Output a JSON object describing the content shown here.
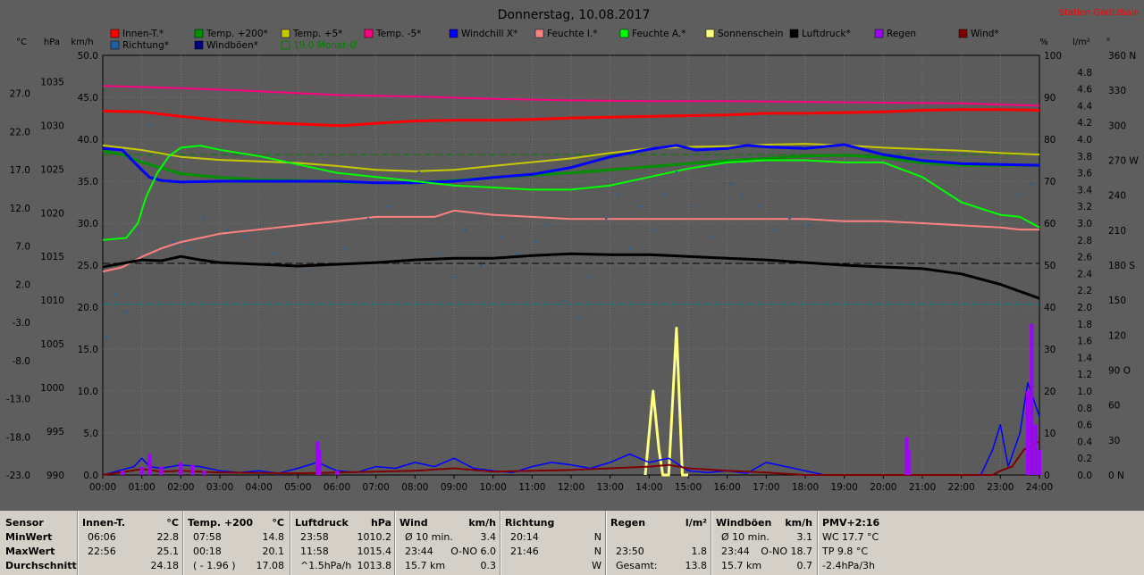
{
  "header": {
    "title": "Donnerstag, 10.08.2017",
    "station": "Station Göritzhain",
    "unit_labels": [
      "°C",
      "hPa",
      "km/h",
      "%",
      "l/m²",
      "°"
    ]
  },
  "legend": [
    {
      "label": "Innen-T.*",
      "color": "#ff0000"
    },
    {
      "label": "Temp. +200*",
      "color": "#009000"
    },
    {
      "label": "Temp. +5*",
      "color": "#c8c800"
    },
    {
      "label": "Temp. -5*",
      "color": "#ff0080"
    },
    {
      "label": "Windchill X*",
      "color": "#0000ff"
    },
    {
      "label": "Feuchte I.*",
      "color": "#ff8080"
    },
    {
      "label": "Feuchte A.*",
      "color": "#00ff00"
    },
    {
      "label": "Sonnenschein",
      "color": "#ffff80"
    },
    {
      "label": "Luftdruck*",
      "color": "#000000"
    },
    {
      "label": "Regen",
      "color": "#a000ff"
    },
    {
      "label": "Wind*",
      "color": "#800000"
    },
    {
      "label": "Richtung*",
      "color": "#2060a0"
    },
    {
      "label": "Windböen*",
      "color": "#000080"
    },
    {
      "label": "19.0 Monat-Ø",
      "color": "#008000",
      "outline": true
    }
  ],
  "chart_data": {
    "type": "line",
    "x": [
      "00:00",
      "01:00",
      "02:00",
      "03:00",
      "04:00",
      "05:00",
      "06:00",
      "07:00",
      "08:00",
      "09:00",
      "10:00",
      "11:00",
      "12:00",
      "13:00",
      "14:00",
      "15:00",
      "16:00",
      "17:00",
      "18:00",
      "19:00",
      "20:00",
      "21:00",
      "22:00",
      "23:00",
      "24:00"
    ],
    "xlim": [
      0,
      24
    ],
    "axes": {
      "celsius": {
        "ticks": [
          "27.0",
          "22.0",
          "17.0",
          "12.0",
          "7.0",
          "2.0",
          "-3.0",
          "-8.0",
          "-13.0",
          "-18.0",
          "-23.0"
        ],
        "ylim": [
          -23,
          32
        ]
      },
      "hpa": {
        "ticks": [
          "1035",
          "1030",
          "1025",
          "1020",
          "1015",
          "1010",
          "1005",
          "1000",
          "995",
          "990"
        ],
        "ylim": [
          990,
          1038
        ]
      },
      "kmh": {
        "ticks": [
          "50.0",
          "45.0",
          "40.0",
          "35.0",
          "30.0",
          "25.0",
          "20.0",
          "15.0",
          "10.0",
          "5.0",
          "0.0"
        ],
        "ylim": [
          0,
          50
        ]
      },
      "percent": {
        "ticks": [
          "100",
          "90",
          "80",
          "70",
          "60",
          "50",
          "40",
          "30",
          "20",
          "10",
          "0"
        ],
        "ylim": [
          0,
          100
        ]
      },
      "rain": {
        "ticks": [
          "4.8",
          "4.6",
          "4.4",
          "4.2",
          "4.0",
          "3.8",
          "3.6",
          "3.4",
          "3.2",
          "3.0",
          "2.8",
          "2.6",
          "2.4",
          "2.2",
          "2.0",
          "1.8",
          "1.6",
          "1.4",
          "1.2",
          "1.0",
          "0.8",
          "0.6",
          "0.4",
          "0.2",
          "0.0"
        ],
        "ylim": [
          0,
          5
        ]
      },
      "direction": {
        "ticks": [
          "360 N",
          "330",
          "300",
          "270 W",
          "240",
          "210",
          "180 S",
          "150",
          "120",
          "90 O",
          "60",
          "30",
          "0 N"
        ],
        "ylim": [
          0,
          360
        ]
      }
    },
    "reference_lines": [
      {
        "name": "19.0 Monat-Ø",
        "axis": "celsius",
        "value": 19.0,
        "color": "#008000"
      },
      {
        "axis": "hpa",
        "value": 1014.2,
        "color": "#000000"
      },
      {
        "axis": "celsius",
        "value": -0.6,
        "color": "#008080"
      }
    ],
    "series": [
      {
        "name": "Temp. -5*",
        "axis": "celsius",
        "color": "#ff0080",
        "width": 2,
        "x": [
          0,
          2,
          4,
          6,
          8,
          10,
          12,
          14,
          16,
          18,
          20,
          22,
          24
        ],
        "y": [
          28.0,
          27.7,
          27.3,
          26.8,
          26.6,
          26.3,
          26.1,
          26.0,
          26.0,
          25.9,
          25.8,
          25.7,
          25.4
        ]
      },
      {
        "name": "Innen-T.*",
        "axis": "celsius",
        "color": "#ff0000",
        "width": 3,
        "x": [
          0,
          1,
          2,
          3,
          4,
          5,
          6,
          6.2,
          7,
          8,
          9,
          10,
          11,
          12,
          13,
          14,
          15,
          16,
          17,
          18,
          19,
          20,
          21,
          22,
          23,
          24
        ],
        "y": [
          24.7,
          24.6,
          24.0,
          23.5,
          23.2,
          23.0,
          22.8,
          22.8,
          23.1,
          23.4,
          23.5,
          23.5,
          23.6,
          23.8,
          23.9,
          24.0,
          24.1,
          24.2,
          24.4,
          24.4,
          24.5,
          24.6,
          24.8,
          24.9,
          24.9,
          24.8
        ]
      },
      {
        "name": "Temp. +5*",
        "axis": "celsius",
        "color": "#c8c800",
        "width": 2,
        "x": [
          0,
          1,
          2,
          3,
          4,
          5,
          6,
          7,
          8,
          9,
          10,
          11,
          12,
          13,
          14,
          15,
          16,
          17,
          18,
          19,
          20,
          21,
          22,
          23,
          24
        ],
        "y": [
          20.2,
          19.6,
          18.7,
          18.3,
          18.1,
          17.9,
          17.5,
          17.0,
          16.8,
          17.0,
          17.5,
          18.0,
          18.5,
          19.2,
          19.8,
          20.0,
          20.1,
          20.3,
          20.4,
          20.2,
          19.9,
          19.7,
          19.5,
          19.2,
          19.0
        ]
      },
      {
        "name": "Temp. +200*",
        "axis": "celsius",
        "color": "#009000",
        "width": 3,
        "x": [
          0,
          0.5,
          1,
          2,
          3,
          4,
          5,
          6,
          7,
          8,
          9,
          10,
          11,
          12,
          13,
          14,
          15,
          16,
          17,
          18,
          19,
          20,
          21,
          22,
          23,
          24
        ],
        "y": [
          19.5,
          19.0,
          18.0,
          16.5,
          16.0,
          15.7,
          15.6,
          15.4,
          15.3,
          15.3,
          15.6,
          16.0,
          16.3,
          16.6,
          17.0,
          17.4,
          17.8,
          18.2,
          18.5,
          18.8,
          18.9,
          18.6,
          17.9,
          17.6,
          17.6,
          17.6
        ]
      },
      {
        "name": "Windchill X*",
        "axis": "celsius",
        "color": "#0000ff",
        "width": 3,
        "x": [
          0,
          0.5,
          0.9,
          1.2,
          1.5,
          2,
          3,
          4,
          5,
          6,
          7,
          8,
          9,
          10,
          11,
          12,
          13,
          14,
          14.7,
          15.2,
          16,
          16.5,
          17,
          18,
          19,
          20,
          21,
          22,
          23,
          24
        ],
        "y": [
          19.8,
          19.6,
          17.5,
          16.0,
          15.6,
          15.4,
          15.5,
          15.5,
          15.5,
          15.5,
          15.3,
          15.3,
          15.5,
          16.0,
          16.4,
          17.3,
          18.7,
          19.7,
          20.2,
          19.6,
          19.8,
          20.2,
          20.0,
          19.8,
          20.3,
          19.0,
          18.2,
          17.8,
          17.7,
          17.6
        ]
      },
      {
        "name": "Feuchte A.*",
        "axis": "percent",
        "color": "#00ff00",
        "width": 2,
        "x": [
          0,
          0.6,
          0.9,
          1.1,
          1.4,
          1.7,
          2,
          2.5,
          3,
          4,
          5,
          6,
          7,
          8,
          9,
          10,
          11,
          12,
          13,
          14,
          15,
          16,
          17,
          18,
          19,
          20,
          21,
          22,
          23,
          23.5,
          24
        ],
        "y": [
          56,
          56.5,
          60,
          66,
          72,
          76,
          78,
          78.5,
          77.5,
          76,
          74,
          72,
          71,
          70,
          69,
          68.5,
          68,
          68,
          69,
          71,
          73,
          74.5,
          75,
          75,
          74.5,
          74.5,
          71,
          65,
          62,
          61.5,
          59
        ]
      },
      {
        "name": "Feuchte I.*",
        "axis": "percent",
        "color": "#ff8080",
        "width": 2,
        "x": [
          0,
          0.5,
          1,
          1.5,
          2,
          2.5,
          3,
          3.5,
          4,
          5,
          5.5,
          6,
          6.5,
          7,
          7.5,
          8,
          8.5,
          9,
          9.5,
          10,
          11,
          12,
          13,
          14,
          15,
          16,
          17,
          18,
          19,
          20,
          21,
          22,
          23,
          23.5,
          24
        ],
        "y": [
          48.5,
          49.5,
          52,
          54,
          55.5,
          56.5,
          57.5,
          58,
          58.5,
          59.5,
          60,
          60.5,
          61,
          61.5,
          61.5,
          61.5,
          61.5,
          63,
          62.5,
          62,
          61.5,
          61,
          61,
          61,
          61,
          61,
          61,
          61,
          60.5,
          60.5,
          60,
          59.5,
          59,
          58.5,
          58.5
        ]
      },
      {
        "name": "Luftdruck*",
        "axis": "hpa",
        "color": "#000000",
        "width": 3,
        "x": [
          0,
          0.5,
          1,
          1.5,
          2,
          2.5,
          3,
          4,
          5,
          6,
          7,
          8,
          9,
          10,
          11,
          12,
          13,
          14,
          15,
          16,
          17,
          18,
          19,
          20,
          21,
          22,
          23,
          24
        ],
        "y": [
          1013.8,
          1014.2,
          1014.6,
          1014.5,
          1015.0,
          1014.6,
          1014.3,
          1014.1,
          1013.9,
          1014.1,
          1014.3,
          1014.6,
          1014.8,
          1014.8,
          1015.1,
          1015.3,
          1015.2,
          1015.2,
          1015.0,
          1014.8,
          1014.6,
          1014.3,
          1014.0,
          1013.8,
          1013.6,
          1013.0,
          1011.8,
          1010.2
        ]
      },
      {
        "name": "Sonnenschein",
        "axis": "percent",
        "color": "#ffff80",
        "width": 3,
        "x": [
          13.9,
          14.1,
          14.25,
          14.35,
          14.5,
          14.7,
          14.85,
          15.0
        ],
        "y": [
          0,
          20,
          6,
          0,
          0,
          35,
          0,
          0
        ]
      },
      {
        "name": "Windböen*",
        "axis": "kmh",
        "color": "#0000ff",
        "width": 1.5,
        "x": [
          0,
          0.8,
          1,
          1.2,
          1.5,
          2,
          2.5,
          3,
          3.5,
          4,
          4.5,
          5,
          5.5,
          6,
          6.5,
          7,
          7.5,
          8,
          8.5,
          9,
          9.5,
          10,
          10.5,
          11,
          11.5,
          12,
          12.5,
          13,
          13.5,
          14,
          14.5,
          15,
          15.5,
          16,
          16.5,
          17,
          17.5,
          18,
          18.5,
          22.5,
          22.8,
          23,
          23.2,
          23.5,
          23.7,
          24
        ],
        "y": [
          0,
          1,
          2,
          1,
          0.8,
          1.2,
          1,
          0.5,
          0.3,
          0.5,
          0.2,
          0.8,
          1.5,
          0.5,
          0.3,
          1,
          0.8,
          1.5,
          1,
          2,
          0.8,
          0.5,
          0.3,
          1,
          1.5,
          1.2,
          0.8,
          1.5,
          2.5,
          1.5,
          2,
          0.5,
          0.3,
          0.5,
          0.2,
          1.5,
          1,
          0.5,
          0,
          0,
          3,
          6,
          1,
          5,
          11,
          7
        ]
      },
      {
        "name": "Wind*",
        "axis": "kmh",
        "color": "#800000",
        "width": 2,
        "x": [
          0,
          1,
          1.5,
          2,
          3,
          5,
          6,
          8,
          9,
          10,
          11,
          12,
          13,
          14,
          14.5,
          15,
          16,
          17,
          18,
          22.8,
          23,
          23.3,
          23.6,
          24
        ],
        "y": [
          0,
          0.7,
          0.4,
          0.5,
          0.3,
          0.2,
          0.3,
          0.5,
          0.8,
          0.4,
          0.5,
          0.6,
          0.8,
          1,
          1.2,
          0.8,
          0.5,
          0.3,
          0,
          0,
          0.5,
          1,
          3,
          4
        ]
      },
      {
        "name": "Regen",
        "axis": "rain",
        "color": "#a000ff",
        "type": "bar",
        "x": [
          0.5,
          1,
          1.2,
          1.5,
          2,
          2.3,
          2.6,
          5.5,
          5.55,
          6,
          20.6,
          20.65,
          23.7,
          23.8,
          23.9,
          24
        ],
        "y": [
          0.05,
          0.1,
          0.25,
          0.1,
          0.15,
          0.12,
          0.05,
          0.4,
          0.3,
          0.05,
          0.45,
          0.3,
          1.0,
          1.8,
          0.6,
          0.3
        ]
      },
      {
        "name": "Richtung*",
        "axis": "direction",
        "color": "#2060a0",
        "type": "scatter",
        "x": [
          0.1,
          0.3,
          0.6,
          0.9,
          1.2,
          1.8,
          2.2,
          2.6,
          3.2,
          3.6,
          4.4,
          5.3,
          6.2,
          6.8,
          7.3,
          8.1,
          8.6,
          9.0,
          9.3,
          9.7,
          10.2,
          10.6,
          11.1,
          11.4,
          11.8,
          12.2,
          12.5,
          12.9,
          13.2,
          13.5,
          13.8,
          14.1,
          14.4,
          14.7,
          15.2,
          15.6,
          16.1,
          16.4,
          16.8,
          17.2,
          17.6,
          18.1,
          23.5,
          23.8
        ],
        "y": [
          118,
          155,
          140,
          210,
          300,
          200,
          195,
          220,
          210,
          205,
          190,
          175,
          195,
          220,
          230,
          260,
          190,
          170,
          210,
          180,
          205,
          190,
          200,
          215,
          150,
          135,
          170,
          220,
          240,
          195,
          230,
          210,
          240,
          260,
          230,
          205,
          250,
          240,
          230,
          210,
          220,
          215,
          240,
          250
        ]
      }
    ]
  },
  "table": {
    "columns": [
      {
        "header": "Sensor",
        "unit": "",
        "min_time": "",
        "min": "",
        "max_time": "",
        "max": "",
        "avg_time": "",
        "avg": ""
      },
      {
        "header": "Innen-T.",
        "unit": "°C",
        "min_time": "06:06",
        "min": "22.8",
        "max_time": "22:56",
        "max": "25.1",
        "avg_time": "",
        "avg": "24.18"
      },
      {
        "header": "Temp. +200",
        "unit": "°C",
        "min_time": "07:58",
        "min": "14.8",
        "max_time": "00:18",
        "max": "20.1",
        "avg_time": "( - 1.96 )",
        "avg": "17.08"
      },
      {
        "header": "Luftdruck",
        "unit": "hPa",
        "min_time": "23:58",
        "min": "1010.2",
        "max_time": "11:58",
        "max": "1015.4",
        "avg_time": "^1.5hPa/h",
        "avg": "1013.8"
      },
      {
        "header": "Wind",
        "unit": "km/h",
        "min_time": "Ø 10 min.",
        "min": "3.4",
        "max_time": "23:44",
        "max": "O-NO 6.0",
        "avg_time": "15.7 km",
        "avg": "0.3"
      },
      {
        "header": "Richtung",
        "unit": "",
        "min_time": "20:14",
        "min": "N",
        "max_time": "21:46",
        "max": "N",
        "avg_time": "",
        "avg": "W"
      },
      {
        "header": "Regen",
        "unit": "l/m²",
        "min_time": "",
        "min": "",
        "max_time": "23:50",
        "max": "1.8",
        "avg_time": "Gesamt:",
        "avg": "13.8"
      },
      {
        "header": "Windböen",
        "unit": "km/h",
        "min_time": "Ø 10 min.",
        "min": "3.1",
        "max_time": "23:44",
        "max": "O-NO 18.7",
        "avg_time": "15.7 km",
        "avg": "0.7"
      },
      {
        "header": "PMV+2:16",
        "unit": "",
        "min_time": "WC 17.7 °C",
        "min": "",
        "max_time": "TP 9.8 °C",
        "max": "",
        "avg_time": "-2.4hPa/3h",
        "avg": ""
      }
    ],
    "row_labels": [
      "MinWert",
      "MaxWert",
      "Durchschnitt"
    ]
  }
}
